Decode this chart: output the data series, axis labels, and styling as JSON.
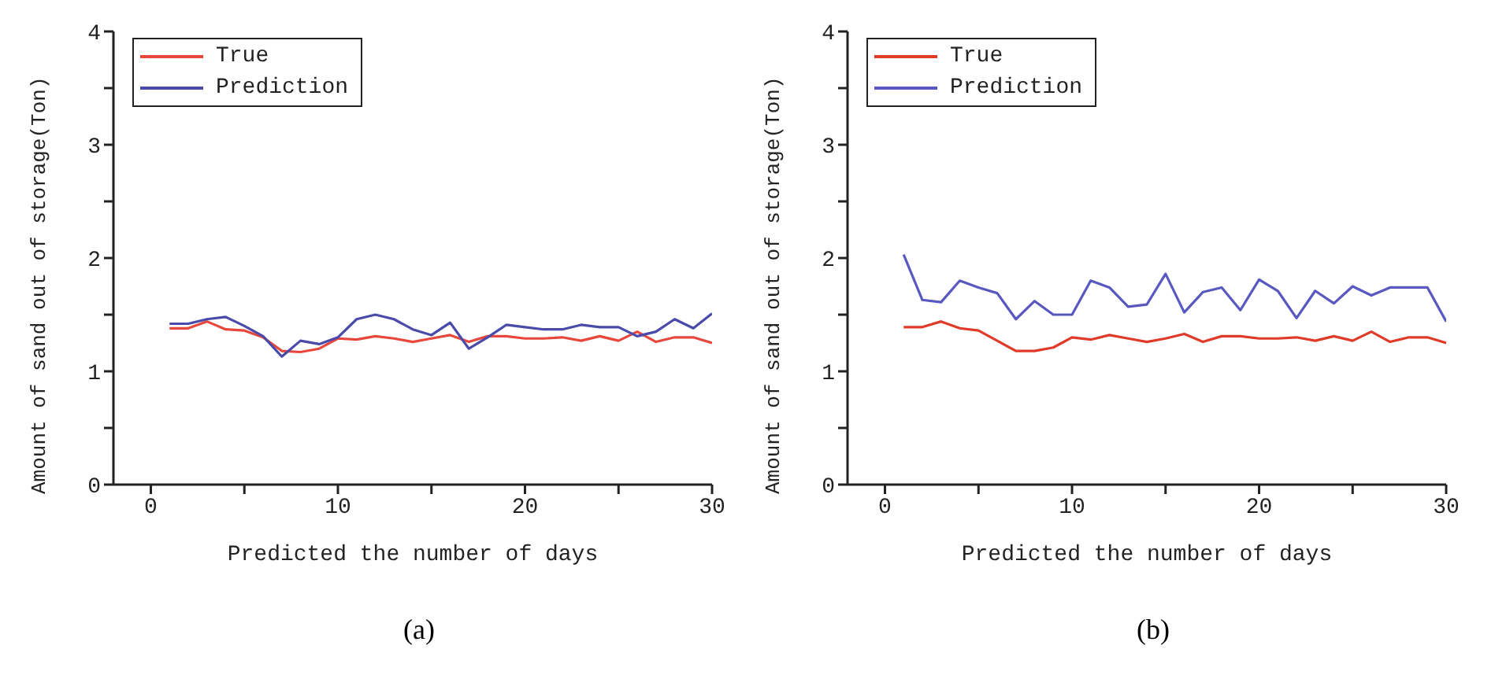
{
  "chart_data": [
    {
      "type": "line",
      "xlabel": "Predicted the number of days",
      "ylabel": "Amount of sand out of storage(Ton)",
      "annotations": [
        "(a)"
      ],
      "x": [
        1,
        2,
        3,
        4,
        5,
        6,
        7,
        8,
        9,
        10,
        11,
        12,
        13,
        14,
        15,
        16,
        17,
        18,
        19,
        20,
        21,
        22,
        23,
        24,
        25,
        26,
        27,
        28,
        29,
        30
      ],
      "xlim": [
        -2,
        30
      ],
      "xticks": [
        0,
        {
          "value": 5,
          "label": null
        },
        10,
        {
          "value": 15,
          "label": null
        },
        20,
        {
          "value": 25,
          "label": null
        },
        30
      ],
      "ylim": [
        0,
        4
      ],
      "yticks": [
        0,
        {
          "value": 0.5,
          "label": null
        },
        1,
        {
          "value": 1.5,
          "label": null
        },
        2,
        {
          "value": 2.5,
          "label": null
        },
        3,
        {
          "value": 3.5,
          "label": null
        },
        4
      ],
      "legend": "top left",
      "grid": false,
      "series": [
        {
          "name": "True",
          "color": "#e8483c",
          "values": [
            1.38,
            1.38,
            1.44,
            1.37,
            1.36,
            1.3,
            1.18,
            1.17,
            1.2,
            1.29,
            1.28,
            1.31,
            1.29,
            1.26,
            1.29,
            1.32,
            1.26,
            1.31,
            1.31,
            1.29,
            1.29,
            1.3,
            1.27,
            1.31,
            1.27,
            1.35,
            1.26,
            1.3,
            1.3,
            1.25
          ]
        },
        {
          "name": "Prediction",
          "color": "#4a4aaa",
          "values": [
            1.42,
            1.42,
            1.46,
            1.48,
            1.4,
            1.31,
            1.13,
            1.27,
            1.24,
            1.3,
            1.46,
            1.5,
            1.46,
            1.37,
            1.32,
            1.43,
            1.2,
            1.3,
            1.41,
            1.39,
            1.37,
            1.37,
            1.41,
            1.39,
            1.39,
            1.31,
            1.35,
            1.46,
            1.38,
            1.51
          ]
        }
      ]
    },
    {
      "type": "line",
      "xlabel": "Predicted the number of days",
      "ylabel": "Amount of sand out of storage(Ton)",
      "annotations": [
        "(b)"
      ],
      "x": [
        1,
        2,
        3,
        4,
        5,
        6,
        7,
        8,
        9,
        10,
        11,
        12,
        13,
        14,
        15,
        16,
        17,
        18,
        19,
        20,
        21,
        22,
        23,
        24,
        25,
        26,
        27,
        28,
        29,
        30
      ],
      "xlim": [
        -2,
        30
      ],
      "xticks": [
        0,
        {
          "value": 5,
          "label": null
        },
        10,
        {
          "value": 15,
          "label": null
        },
        20,
        {
          "value": 25,
          "label": null
        },
        30
      ],
      "ylim": [
        0,
        4
      ],
      "yticks": [
        0,
        {
          "value": 0.5,
          "label": null
        },
        1,
        {
          "value": 1.5,
          "label": null
        },
        2,
        {
          "value": 2.5,
          "label": null
        },
        3,
        {
          "value": 3.5,
          "label": null
        },
        4
      ],
      "legend": "top left",
      "grid": false,
      "series": [
        {
          "name": "True",
          "color": "#e03a28",
          "values": [
            1.39,
            1.39,
            1.44,
            1.38,
            1.36,
            1.27,
            1.18,
            1.18,
            1.21,
            1.3,
            1.28,
            1.32,
            1.29,
            1.26,
            1.29,
            1.33,
            1.26,
            1.31,
            1.31,
            1.29,
            1.29,
            1.3,
            1.27,
            1.31,
            1.27,
            1.35,
            1.26,
            1.3,
            1.3,
            1.25
          ]
        },
        {
          "name": "Prediction",
          "color": "#5858c0",
          "values": [
            2.03,
            1.63,
            1.61,
            1.8,
            1.74,
            1.69,
            1.46,
            1.62,
            1.5,
            1.5,
            1.8,
            1.74,
            1.57,
            1.59,
            1.86,
            1.52,
            1.7,
            1.74,
            1.54,
            1.81,
            1.71,
            1.47,
            1.71,
            1.6,
            1.75,
            1.67,
            1.74,
            1.74,
            1.74,
            1.44
          ]
        }
      ]
    }
  ]
}
